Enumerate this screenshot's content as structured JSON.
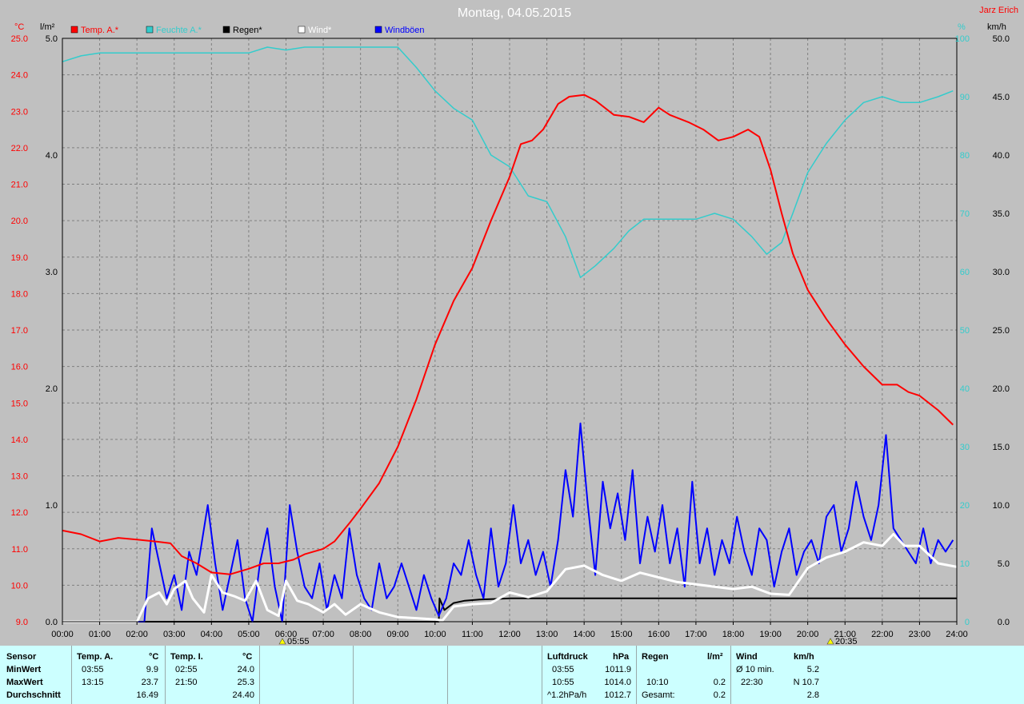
{
  "title": "Montag, 04.05.2015",
  "author": "Jarz Erich",
  "axis_units": {
    "temp": "°C",
    "rain": "l/m²",
    "humidity": "%",
    "wind": "km/h"
  },
  "sun": {
    "rise": "05:55",
    "set": "20:35"
  },
  "colors": {
    "temp": "#ff0000",
    "humidity": "#33cccc",
    "rain": "#000000",
    "wind": "#ffffff",
    "gust": "#0000ff",
    "grid": "#808080",
    "background": "#c0c0c0",
    "panel": "#ccffff"
  },
  "chart_data": {
    "type": "line",
    "title": "Montag, 04.05.2015",
    "x_ticks": [
      "00:00",
      "01:00",
      "02:00",
      "03:00",
      "04:00",
      "05:00",
      "06:00",
      "07:00",
      "08:00",
      "09:00",
      "10:00",
      "11:00",
      "12:00",
      "13:00",
      "14:00",
      "15:00",
      "16:00",
      "17:00",
      "18:00",
      "19:00",
      "20:00",
      "21:00",
      "22:00",
      "23:00",
      "24:00"
    ],
    "temp_axis": {
      "label": "°C",
      "ylim": [
        9.0,
        25.0
      ],
      "ticks": [
        "9.0",
        "10.0",
        "11.0",
        "12.0",
        "13.0",
        "14.0",
        "15.0",
        "16.0",
        "17.0",
        "18.0",
        "19.0",
        "20.0",
        "21.0",
        "22.0",
        "23.0",
        "24.0",
        "25.0"
      ]
    },
    "rain_axis": {
      "label": "l/m²",
      "ylim": [
        0.0,
        5.0
      ],
      "ticks": [
        "0.0",
        "1.0",
        "2.0",
        "3.0",
        "4.0",
        "5.0"
      ]
    },
    "humidity_axis": {
      "label": "%",
      "ylim": [
        0,
        100
      ],
      "ticks": [
        "0",
        "10",
        "20",
        "30",
        "40",
        "50",
        "60",
        "70",
        "80",
        "90",
        "100"
      ]
    },
    "wind_axis": {
      "label": "km/h",
      "ylim": [
        0.0,
        50.0
      ],
      "ticks": [
        "0.0",
        "5.0",
        "10.0",
        "15.0",
        "20.0",
        "25.0",
        "30.0",
        "35.0",
        "40.0",
        "45.0",
        "50.0"
      ]
    },
    "legend": [
      "Temp. A.*",
      "Feuchte A.*",
      "Regen*",
      "Wind*",
      "Windböen"
    ],
    "series": [
      {
        "name": "Temp. A.*",
        "axis": "temp",
        "color": "#ff0000",
        "x": [
          0,
          0.5,
          1,
          1.5,
          2,
          2.5,
          2.9,
          3.2,
          3.6,
          4,
          4.5,
          5,
          5.4,
          5.8,
          6.2,
          6.5,
          7,
          7.3,
          7.7,
          8,
          8.5,
          9,
          9.5,
          10,
          10.5,
          11,
          11.5,
          12,
          12.3,
          12.6,
          12.9,
          13.3,
          13.6,
          14,
          14.3,
          14.8,
          15.2,
          15.6,
          16,
          16.3,
          16.8,
          17.2,
          17.6,
          18,
          18.4,
          18.7,
          19,
          19.3,
          19.6,
          20,
          20.5,
          21,
          21.5,
          22,
          22.4,
          22.7,
          23,
          23.5,
          23.9
        ],
        "values": [
          11.5,
          11.4,
          11.2,
          11.3,
          11.25,
          11.2,
          11.15,
          10.8,
          10.6,
          10.35,
          10.3,
          10.45,
          10.6,
          10.6,
          10.7,
          10.85,
          11.0,
          11.2,
          11.7,
          12.1,
          12.8,
          13.8,
          15.1,
          16.6,
          17.8,
          18.7,
          20.0,
          21.2,
          22.1,
          22.2,
          22.5,
          23.2,
          23.4,
          23.45,
          23.3,
          22.9,
          22.85,
          22.7,
          23.1,
          22.9,
          22.7,
          22.5,
          22.2,
          22.3,
          22.5,
          22.3,
          21.4,
          20.2,
          19.1,
          18.1,
          17.3,
          16.6,
          16.0,
          15.5,
          15.5,
          15.3,
          15.2,
          14.8,
          14.4
        ]
      },
      {
        "name": "Feuchte A.*",
        "axis": "humidity",
        "color": "#33cccc",
        "x": [
          0,
          0.5,
          1,
          2,
          3,
          4,
          5,
          5.5,
          6,
          6.5,
          7,
          8,
          9,
          9.5,
          10,
          10.5,
          11,
          11.5,
          12,
          12.5,
          13,
          13.5,
          13.9,
          14.3,
          14.8,
          15.2,
          15.6,
          16,
          16.5,
          17,
          17.5,
          18,
          18.5,
          18.9,
          19.3,
          19.6,
          20,
          20.5,
          21,
          21.5,
          22,
          22.5,
          23,
          23.5,
          23.9
        ],
        "values": [
          96,
          97,
          97.5,
          97.5,
          97.5,
          97.5,
          97.5,
          98.5,
          98,
          98.5,
          98.5,
          98.5,
          98.5,
          95,
          91,
          88,
          86,
          80,
          78,
          73,
          72,
          66,
          59,
          61,
          64,
          67,
          69,
          69,
          69,
          69,
          70,
          69,
          66,
          63,
          65,
          70,
          77,
          82,
          86,
          89,
          90,
          89,
          89,
          90,
          91
        ]
      },
      {
        "name": "Regen*",
        "axis": "rain",
        "color": "#000000",
        "x": [
          0,
          10.1,
          10.12,
          10.25,
          10.5,
          10.8,
          11.2,
          12,
          24
        ],
        "values": [
          0,
          0,
          0.2,
          0.1,
          0.16,
          0.18,
          0.19,
          0.2,
          0.2
        ]
      },
      {
        "name": "Wind*",
        "axis": "wind",
        "color": "#ffffff",
        "x": [
          0,
          2,
          2.3,
          2.6,
          2.8,
          3.0,
          3.3,
          3.5,
          3.8,
          4.0,
          4.3,
          4.6,
          4.9,
          5.2,
          5.5,
          5.8,
          6.0,
          6.3,
          6.6,
          7.0,
          7.3,
          7.6,
          8.0,
          8.5,
          9.0,
          9.5,
          10.0,
          10.2,
          10.5,
          11.0,
          11.5,
          12.0,
          12.5,
          13.0,
          13.5,
          14.0,
          14.5,
          15.0,
          15.5,
          16.0,
          16.5,
          17.0,
          17.5,
          18.0,
          18.5,
          19.0,
          19.5,
          20.0,
          20.5,
          21.0,
          21.5,
          22.0,
          22.3,
          22.6,
          23.0,
          23.5,
          24.0
        ],
        "values": [
          0,
          0,
          2,
          2.5,
          1.5,
          2.8,
          3.5,
          2,
          0.8,
          4,
          2.5,
          2.2,
          1.8,
          3.5,
          1,
          0.5,
          3.5,
          1.8,
          1.5,
          0.8,
          1.5,
          0.6,
          1.5,
          0.8,
          0.4,
          0.3,
          0.2,
          0.1,
          1.3,
          1.5,
          1.6,
          2.5,
          2.1,
          2.6,
          4.5,
          4.8,
          4,
          3.5,
          4.2,
          3.8,
          3.4,
          3.2,
          3,
          2.8,
          3,
          2.4,
          2.3,
          4.6,
          5.5,
          6,
          6.8,
          6.5,
          7.5,
          6.5,
          6.5,
          5,
          4.7
        ]
      },
      {
        "name": "Windböen",
        "axis": "wind",
        "color": "#0000ff",
        "x": [
          0,
          2.2,
          2.4,
          2.6,
          2.8,
          3.0,
          3.2,
          3.4,
          3.6,
          3.9,
          4.1,
          4.3,
          4.5,
          4.7,
          4.9,
          5.1,
          5.3,
          5.5,
          5.7,
          5.9,
          6.1,
          6.3,
          6.5,
          6.7,
          6.9,
          7.1,
          7.3,
          7.5,
          7.7,
          7.9,
          8.1,
          8.3,
          8.5,
          8.7,
          8.9,
          9.1,
          9.3,
          9.5,
          9.7,
          9.9,
          10.1,
          10.3,
          10.5,
          10.7,
          10.9,
          11.1,
          11.3,
          11.5,
          11.7,
          11.9,
          12.1,
          12.3,
          12.5,
          12.7,
          12.9,
          13.1,
          13.3,
          13.5,
          13.7,
          13.9,
          14.1,
          14.3,
          14.5,
          14.7,
          14.9,
          15.1,
          15.3,
          15.5,
          15.7,
          15.9,
          16.1,
          16.3,
          16.5,
          16.7,
          16.9,
          17.1,
          17.3,
          17.5,
          17.7,
          17.9,
          18.1,
          18.3,
          18.5,
          18.7,
          18.9,
          19.1,
          19.3,
          19.5,
          19.7,
          19.9,
          20.1,
          20.3,
          20.5,
          20.7,
          20.9,
          21.1,
          21.3,
          21.5,
          21.7,
          21.9,
          22.1,
          22.3,
          22.5,
          22.7,
          22.9,
          23.1,
          23.3,
          23.5,
          23.7,
          23.9
        ],
        "values": [
          0,
          0,
          8,
          5,
          2,
          4,
          1,
          6,
          4,
          10,
          5,
          1,
          4,
          7,
          2,
          0,
          5,
          8,
          3,
          0,
          10,
          6,
          3,
          2,
          5,
          1,
          4,
          2,
          8,
          4,
          2,
          1,
          5,
          2,
          3,
          5,
          3,
          1,
          4,
          2,
          0.5,
          2,
          5,
          4,
          7,
          4,
          2,
          8,
          3,
          5,
          10,
          5,
          7,
          4,
          6,
          3,
          7,
          13,
          9,
          17,
          10,
          4,
          12,
          8,
          11,
          7,
          13,
          5,
          9,
          6,
          10,
          5,
          8,
          3,
          12,
          5,
          8,
          4,
          7,
          5,
          9,
          6,
          4,
          8,
          7,
          3,
          6,
          8,
          4,
          6,
          7,
          5,
          9,
          10,
          6,
          8,
          12,
          9,
          7,
          10,
          16,
          8,
          7,
          6,
          5,
          8,
          5,
          7,
          6,
          7
        ]
      }
    ]
  },
  "stats": {
    "sensor": {
      "head": "Sensor",
      "rows": [
        "MinWert",
        "MaxWert",
        "Durchschnitt"
      ]
    },
    "temp_a": {
      "head": "Temp. A.",
      "unit": "°C",
      "rows": [
        [
          "03:55",
          "9.9"
        ],
        [
          "13:15",
          "23.7"
        ],
        [
          "",
          "16.49"
        ]
      ]
    },
    "temp_i": {
      "head": "Temp. I.",
      "unit": "°C",
      "rows": [
        [
          "02:55",
          "24.0"
        ],
        [
          "21:50",
          "25.3"
        ],
        [
          "",
          "24.40"
        ]
      ]
    },
    "pressure": {
      "head": "Luftdruck",
      "unit": "hPa",
      "rows": [
        [
          "03:55",
          "1011.9"
        ],
        [
          "10:55",
          "1014.0"
        ],
        [
          "^1.2hPa/h",
          "1012.7"
        ]
      ]
    },
    "rain": {
      "head": "Regen",
      "unit": "l/m²",
      "rows": [
        [
          "",
          ""
        ],
        [
          "10:10",
          "0.2"
        ],
        [
          "Gesamt:",
          "0.2"
        ]
      ]
    },
    "wind": {
      "head": "Wind",
      "unit": "km/h",
      "rows": [
        [
          "Ø 10 min.",
          "5.2"
        ],
        [
          "22:30",
          "N 10.7"
        ],
        [
          "",
          "2.8"
        ]
      ]
    }
  }
}
